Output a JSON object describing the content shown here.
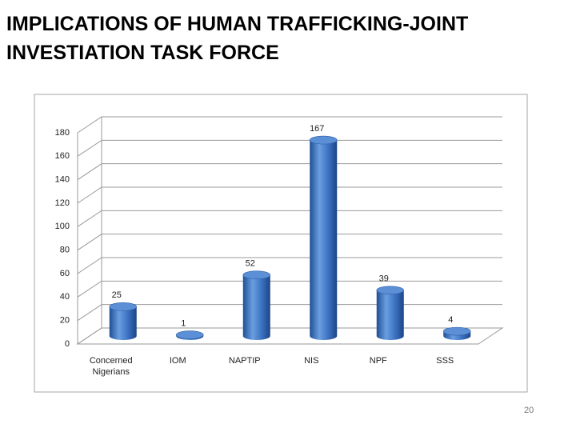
{
  "chart_data": {
    "type": "bar3d",
    "title": "IMPLICATIONS OF HUMAN TRAFFICKING-JOINT INVESTIATION TASK FORCE",
    "categories": [
      "Concerned Nigerians",
      "IOM",
      "NAPTIP",
      "NIS",
      "NPF",
      "SSS"
    ],
    "values": [
      25,
      1,
      52,
      167,
      39,
      4
    ],
    "color": "#3a6fc0",
    "ylim": [
      0,
      180
    ],
    "yticks": [
      0,
      20,
      40,
      60,
      80,
      100,
      120,
      140,
      160,
      180
    ],
    "grid": true
  },
  "page_number": "20"
}
